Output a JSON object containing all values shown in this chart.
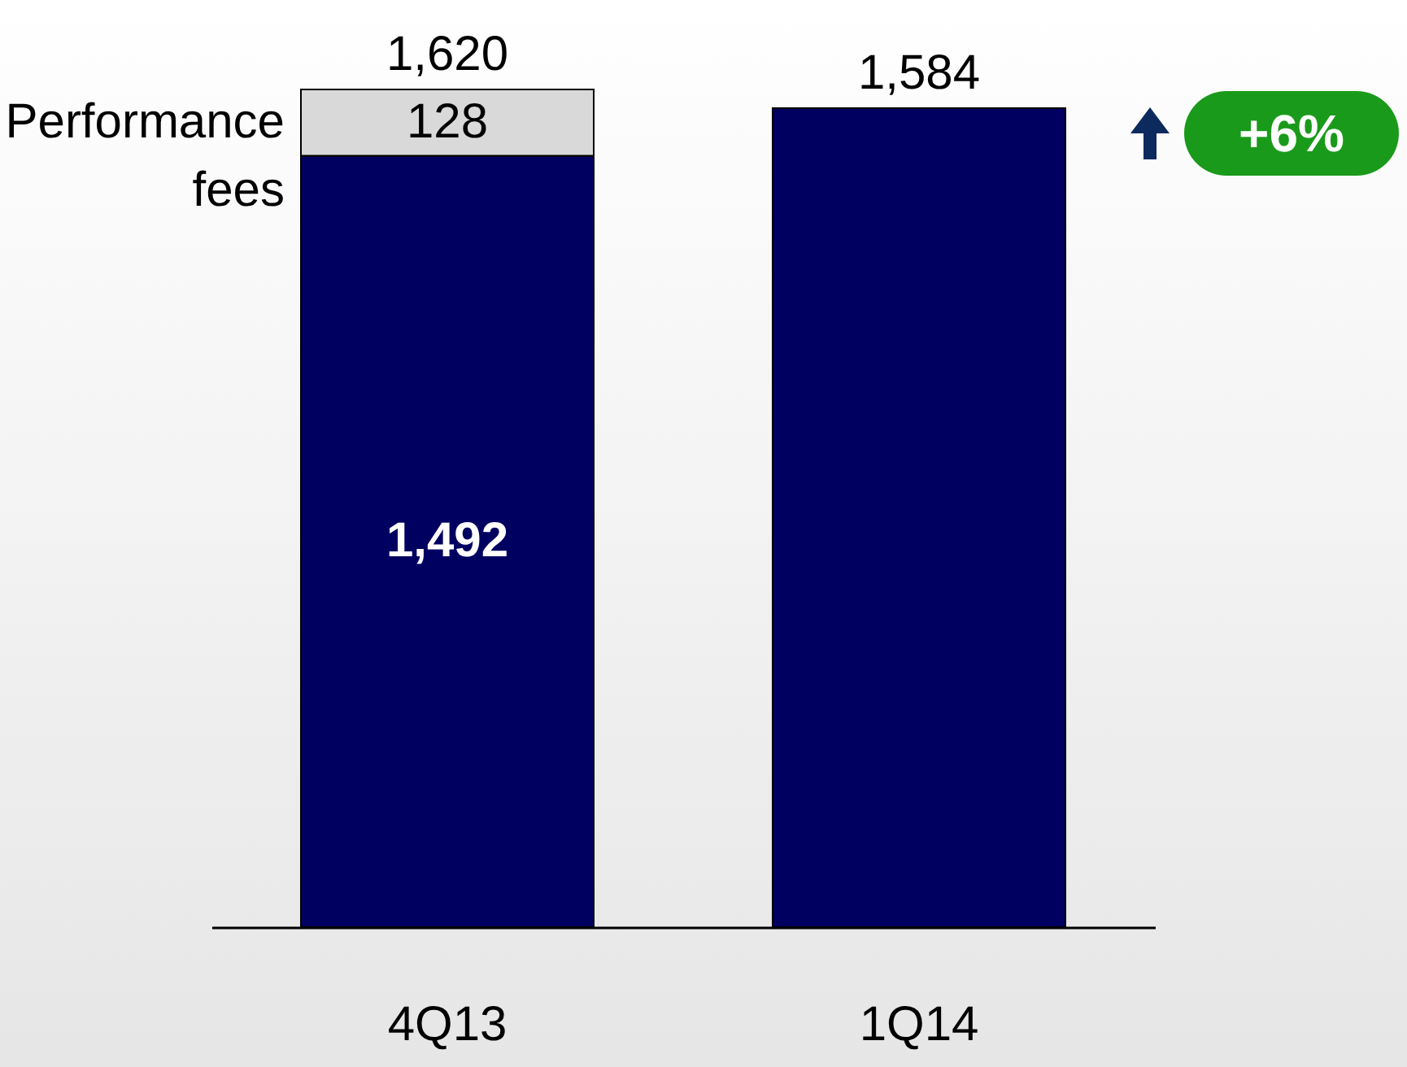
{
  "chart_data": {
    "type": "bar",
    "stacked": true,
    "categories": [
      "4Q13",
      "1Q14"
    ],
    "series": [
      {
        "color": "#000060",
        "values": [
          1492,
          1584
        ],
        "value_labels": [
          "1,492",
          null
        ]
      },
      {
        "name": "Performance fees",
        "color": "#d9d9d9",
        "values": [
          128,
          null
        ],
        "value_labels": [
          "128",
          null
        ]
      }
    ],
    "totals": [
      "1,620",
      "1,584"
    ],
    "annotations": [
      "+6%"
    ]
  }
}
